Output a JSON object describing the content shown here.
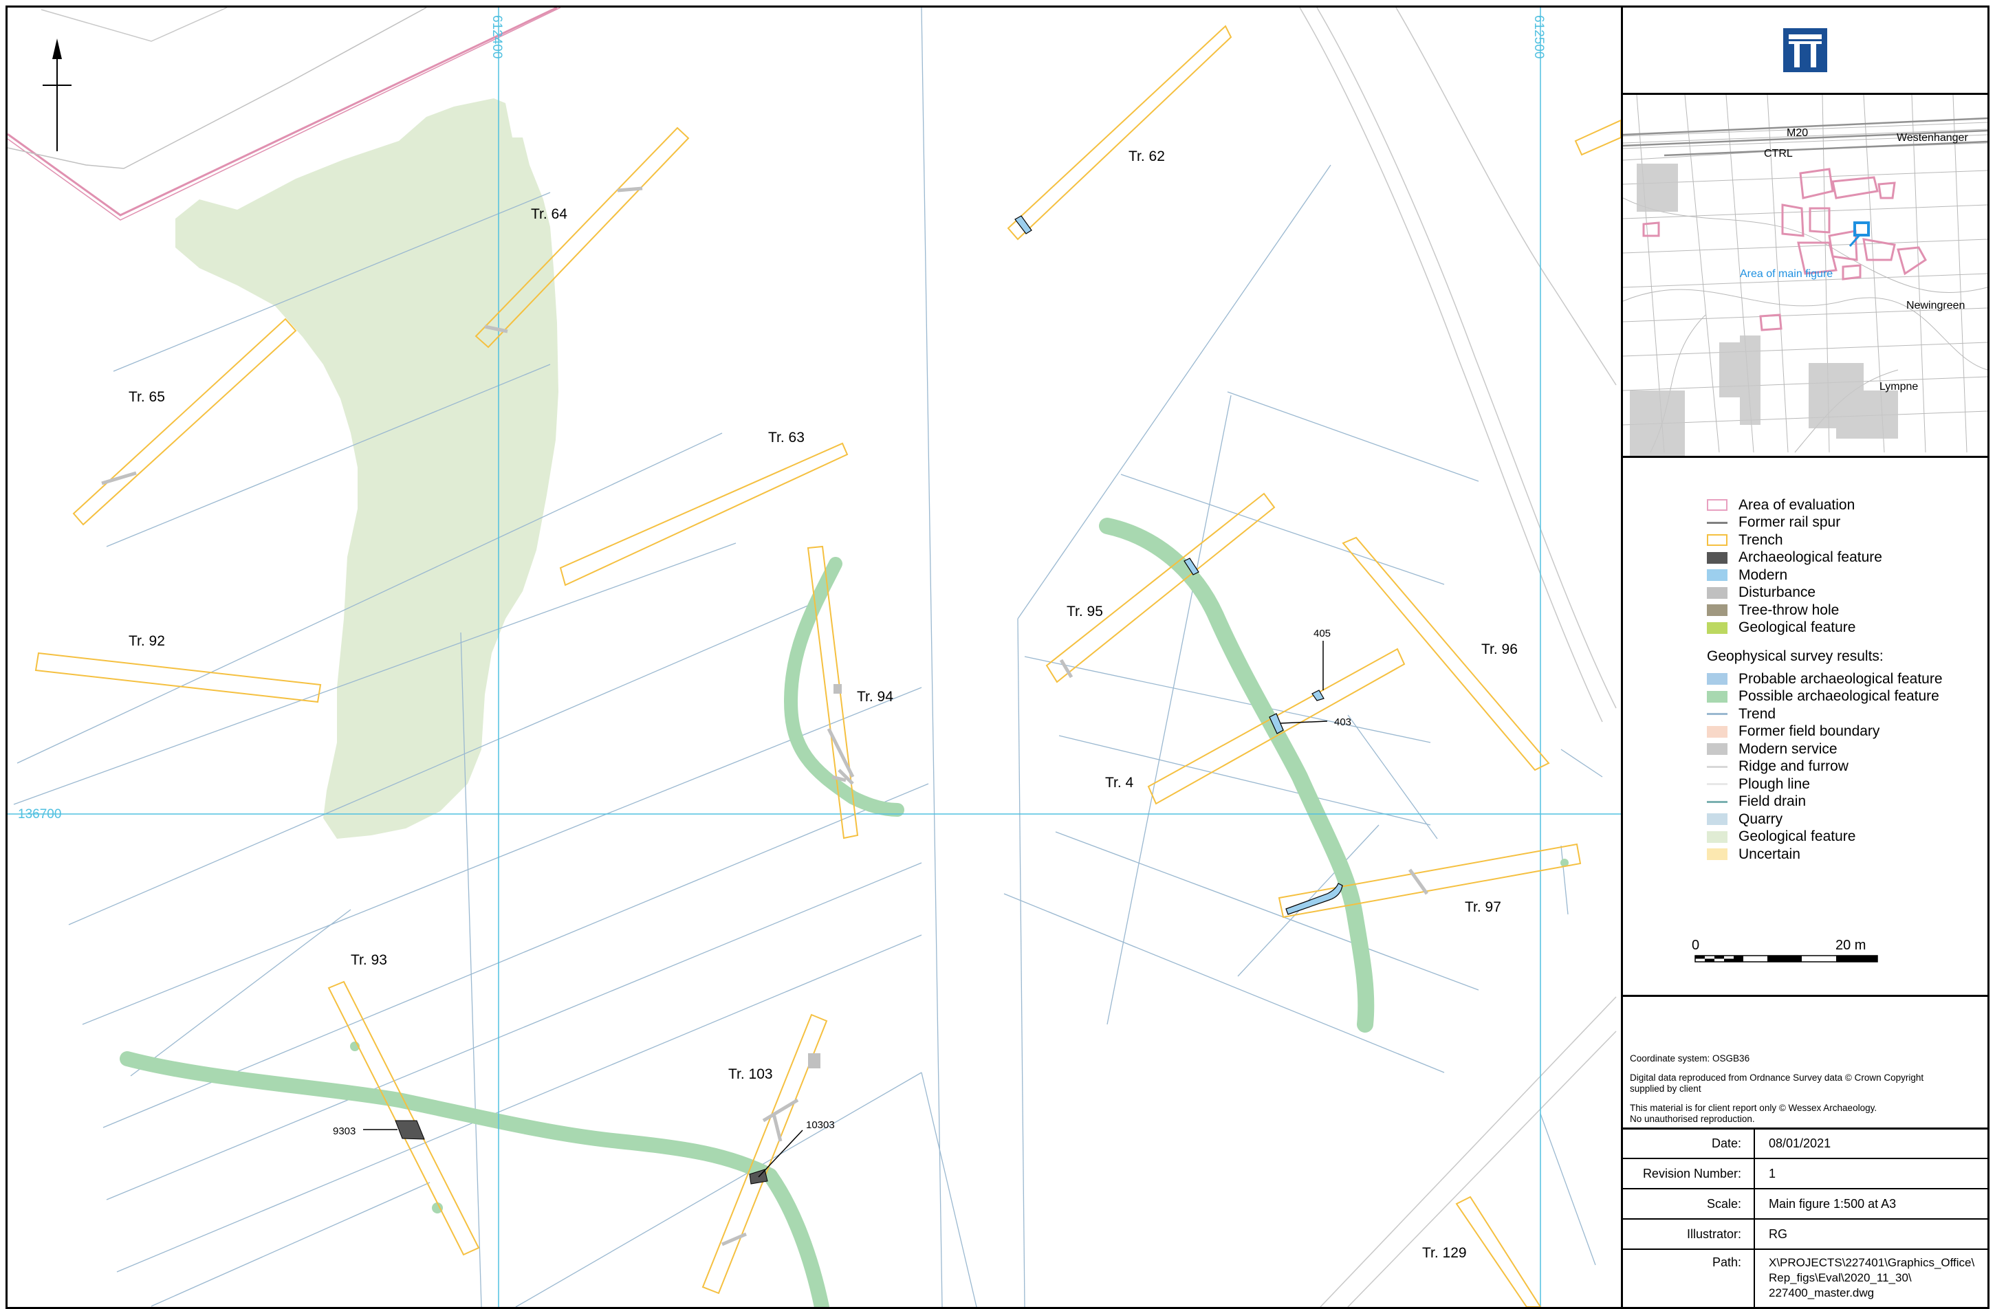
{
  "map": {
    "grid_labels": {
      "e1": "612400",
      "e2": "612500",
      "n1": "136700"
    },
    "trench_labels": [
      "Tr. 62",
      "Tr. 64",
      "Tr. 65",
      "Tr. 63",
      "Tr. 92",
      "Tr. 94",
      "Tr. 95",
      "Tr. 96",
      "Tr. 4",
      "Tr. 97",
      "Tr. 93",
      "Tr. 103",
      "Tr. 129"
    ],
    "feature_labels": [
      "405",
      "403",
      "9303",
      "10303"
    ]
  },
  "inset": {
    "labels": {
      "m20": "M20",
      "westenhanger": "Westenhanger",
      "ctrl": "CTRL",
      "area": "Area of main figure",
      "newingreen": "Newingreen",
      "lympne": "Lympne"
    }
  },
  "legend": {
    "items": [
      {
        "label": "Area of evaluation",
        "style": "outline",
        "color": "#e8a0c0"
      },
      {
        "label": "Former rail spur",
        "style": "line",
        "color": "#808080"
      },
      {
        "label": "Trench",
        "style": "outline",
        "color": "#f5c040"
      },
      {
        "label": "Archaeological feature",
        "style": "fill",
        "color": "#555555"
      },
      {
        "label": "Modern",
        "style": "fill",
        "color": "#9ccfee"
      },
      {
        "label": "Disturbance",
        "style": "fill",
        "color": "#c0c0c0"
      },
      {
        "label": "Tree-throw hole",
        "style": "fill",
        "color": "#a09880"
      },
      {
        "label": "Geological feature",
        "style": "fill",
        "color": "#bcd860"
      }
    ],
    "geo_heading": "Geophysical survey results:",
    "geo_items": [
      {
        "label": "Probable archaeological feature",
        "style": "fill",
        "color": "#a8cce8"
      },
      {
        "label": "Possible archaeological feature",
        "style": "fill",
        "color": "#a8d8b0"
      },
      {
        "label": "Trend",
        "style": "line",
        "color": "#9ab8d0"
      },
      {
        "label": "Former field boundary",
        "style": "fill",
        "color": "#f8d8c8"
      },
      {
        "label": "Modern service",
        "style": "fill",
        "color": "#c8c8c8"
      },
      {
        "label": "Ridge and furrow",
        "style": "line",
        "color": "#d8d8d8"
      },
      {
        "label": "Plough line",
        "style": "line",
        "color": "#e8e8e8"
      },
      {
        "label": "Field drain",
        "style": "line",
        "color": "#7ab0b0"
      },
      {
        "label": "Quarry",
        "style": "fill",
        "color": "#c8dce8"
      },
      {
        "label": "Geological feature",
        "style": "fill",
        "color": "#e0ecd4"
      },
      {
        "label": "Uncertain",
        "style": "fill",
        "color": "#fce8b0"
      }
    ],
    "scale_start": "0",
    "scale_end": "20 m"
  },
  "notes": {
    "coord": "Coordinate system: OSGB36",
    "os_line1": "Digital data reproduced from Ordnance Survey data © Crown Copyright",
    "os_line2": "supplied by client",
    "report_line1": "This material is for client report only © Wessex Archaeology.",
    "report_line2": "No unauthorised reproduction."
  },
  "info": {
    "date_label": "Date:",
    "date": "08/01/2021",
    "rev_label": "Revision Number:",
    "rev": "1",
    "scale_label": "Scale:",
    "scale": "Main figure 1:500 at A3",
    "illus_label": "Illustrator:",
    "illus": "RG",
    "path_label": "Path:",
    "path1": "X\\PROJECTS\\227401\\Graphics_Office\\",
    "path2": "Rep_figs\\Eval\\2020_11_30\\",
    "path3": "227400_master.dwg"
  }
}
